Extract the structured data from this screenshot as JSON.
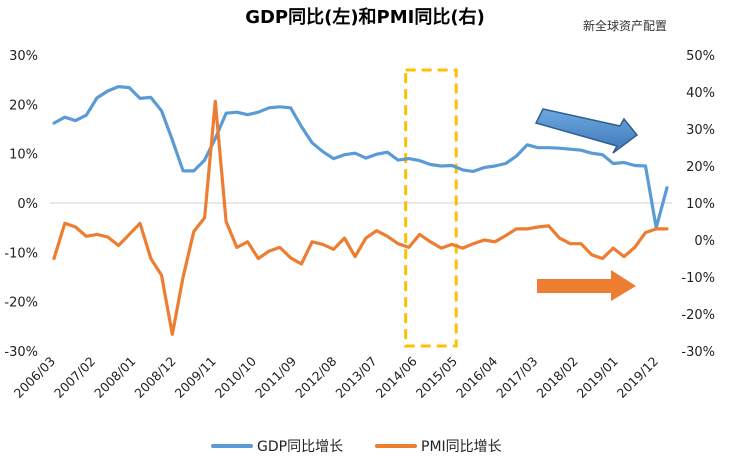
{
  "chart_data": {
    "type": "line",
    "title": "GDP同比(左)和PMI同比(右)",
    "source_label": "新全球资产配置",
    "x_tick_labels": [
      "2006/03",
      "2007/02",
      "2008/01",
      "2008/12",
      "2009/11",
      "2010/10",
      "2011/09",
      "2012/08",
      "2013/07",
      "2014/06",
      "2015/05",
      "2016/04",
      "2017/03",
      "2018/02",
      "2019/01",
      "2019/12"
    ],
    "y_left": {
      "min": -0.3,
      "max": 0.3,
      "ticks": [
        "30%",
        "20%",
        "10%",
        "0%",
        "-10%",
        "-20%",
        "-30%"
      ]
    },
    "y_right": {
      "min": -0.3,
      "max": 0.5,
      "ticks": [
        "50%",
        "40%",
        "30%",
        "20%",
        "10%",
        "0%",
        "-10%",
        "-20%",
        "-30%"
      ]
    },
    "grid": false,
    "legend_position": "bottom",
    "series": [
      {
        "name": "GDP同比增长",
        "axis": "left",
        "color": "#5B9BD5",
        "values": [
          0.162,
          0.174,
          0.167,
          0.178,
          0.213,
          0.227,
          0.236,
          0.234,
          0.212,
          0.214,
          0.187,
          0.128,
          0.065,
          0.065,
          0.087,
          0.131,
          0.182,
          0.184,
          0.179,
          0.184,
          0.193,
          0.195,
          0.193,
          0.155,
          0.122,
          0.104,
          0.09,
          0.098,
          0.101,
          0.091,
          0.099,
          0.103,
          0.087,
          0.09,
          0.086,
          0.078,
          0.075,
          0.076,
          0.067,
          0.064,
          0.072,
          0.075,
          0.08,
          0.095,
          0.118,
          0.112,
          0.112,
          0.111,
          0.109,
          0.107,
          0.101,
          0.098,
          0.08,
          0.082,
          0.076,
          0.075,
          -0.05,
          0.031
        ]
      },
      {
        "name": "PMI同比增长",
        "axis": "right",
        "color": "#ED7D31",
        "values": [
          -0.05,
          0.045,
          0.035,
          0.01,
          0.015,
          0.008,
          -0.015,
          0.015,
          0.045,
          -0.05,
          -0.095,
          -0.255,
          -0.1,
          0.023,
          0.06,
          0.375,
          0.05,
          -0.02,
          -0.005,
          -0.05,
          -0.03,
          -0.02,
          -0.048,
          -0.065,
          -0.005,
          -0.012,
          -0.025,
          0.005,
          -0.045,
          0.005,
          0.025,
          0.01,
          -0.01,
          -0.02,
          0.015,
          -0.005,
          -0.022,
          -0.012,
          -0.022,
          -0.01,
          0.0,
          -0.005,
          0.012,
          0.03,
          0.03,
          0.035,
          0.038,
          0.005,
          -0.01,
          -0.01,
          -0.04,
          -0.05,
          -0.022,
          -0.045,
          -0.02,
          0.02,
          0.03,
          0.03
        ]
      }
    ],
    "annotations": [
      {
        "type": "dashed-rectangle",
        "color": "#FFC000",
        "x_range": [
          "2014/03",
          "2015/05"
        ]
      },
      {
        "type": "arrow",
        "color": "#4A8BD0",
        "direction": "down-right"
      },
      {
        "type": "arrow",
        "color": "#ED7D31",
        "direction": "right"
      }
    ]
  }
}
